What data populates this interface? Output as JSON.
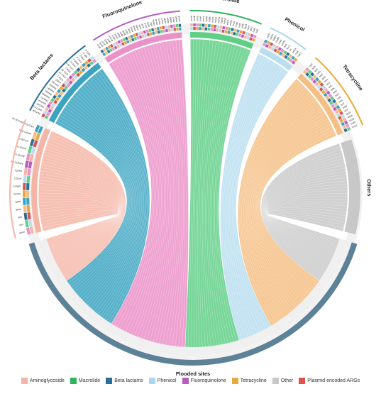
{
  "chart_data": {
    "type": "chord",
    "title": "",
    "target": {
      "name": "Flooded sites",
      "color": "#5d8298"
    },
    "groups": [
      {
        "name": "Aminoglycoside",
        "color": "#f4b5a6",
        "genes": [
          "armA",
          "strA",
          "strB",
          "aadA",
          "aadE",
          "aac(3)",
          "aph(3')",
          "ant(2'')",
          "aac(6')",
          "APH(3')-IIIa",
          "ANT(2'')-Ia",
          "AAC(6')-Ib",
          "AAC(3)-IV",
          "aac(6')-Ib-cr",
          "AAC(3)-IIa(AAC(3)-Ic)"
        ]
      },
      {
        "name": "Beta lactams",
        "color": "#3aa3c1",
        "genes": [
          "blaTEM",
          "blaCTX-M",
          "blaSHV",
          "blaOXA",
          "blaKPC",
          "blaNDM",
          "blaVIM",
          "blaIMP",
          "blaGES",
          "blaCMY",
          "ampC",
          "OXA-1",
          "OXA-10",
          "OXA-48",
          "TEM-1",
          "CTX-M-15",
          "SHV-12",
          "NDM-1",
          "KPC-2",
          "VIM-2",
          "IMP-1",
          "GES-5"
        ]
      },
      {
        "name": "Fluoroquinolone",
        "color": "#eb91c8",
        "genes": [
          "qnrA",
          "qnrB",
          "qnrS",
          "qnrD",
          "qnrC",
          "qnrVC",
          "oqxA",
          "oqxB",
          "qepA",
          "gyrA",
          "gyrB",
          "parC",
          "parE",
          "emrA",
          "emrB",
          "mdtK",
          "norA",
          "norB",
          "acrA",
          "acrB",
          "tolC",
          "mexA",
          "mexB",
          "mexX",
          "mexY",
          "oprM",
          "adeA",
          "adeB",
          "adeJ",
          "smeD",
          "smeE"
        ]
      },
      {
        "name": "Macrolide",
        "color": "#5fcf86",
        "genes": [
          "ermA",
          "ermB",
          "ermC",
          "ermF",
          "ermX",
          "mefA",
          "mefE",
          "msrA",
          "msrD",
          "mphA",
          "mphB",
          "mphE",
          "ereA",
          "ereB",
          "lnuA",
          "lnuB",
          "vatA",
          "vatB",
          "vgaA",
          "carA",
          "oleC",
          "lsaA",
          "lsaE"
        ]
      },
      {
        "name": "Phenicol",
        "color": "#b8def0",
        "genes": [
          "catA1",
          "catA2",
          "catB3",
          "catB8",
          "cmlA",
          "cmlA1",
          "floR",
          "fexA",
          "cfr",
          "optrA",
          "craA",
          "catQ"
        ]
      },
      {
        "name": "Tetracycline",
        "color": "#f5be82",
        "genes": [
          "tetA",
          "tetB",
          "tetC",
          "tetD",
          "tetE",
          "tetG",
          "tetH",
          "tetJ",
          "tetL",
          "tetK",
          "tetM",
          "tetO",
          "tetQ",
          "tetS",
          "tetT",
          "tetW",
          "tetX",
          "tet32",
          "tet36",
          "tet39",
          "tet40",
          "tet44"
        ]
      },
      {
        "name": "Others",
        "color": "#c8c8c8",
        "genes": []
      }
    ],
    "legend": [
      {
        "label": "Aminoglycoside",
        "color": "#f4b5a6"
      },
      {
        "label": "Macrolide",
        "color": "#2fb35c"
      },
      {
        "label": "Beta lactams",
        "color": "#2a6f9a"
      },
      {
        "label": "Phenicol",
        "color": "#a9d7ef"
      },
      {
        "label": "Fluoroquinolone",
        "color": "#b65cc0"
      },
      {
        "label": "Tetracycline",
        "color": "#e8a93a"
      },
      {
        "label": "Other",
        "color": "#c8c8c8"
      },
      {
        "label": "Plasmid encoded ARGs",
        "color": "#d9534f"
      }
    ]
  }
}
